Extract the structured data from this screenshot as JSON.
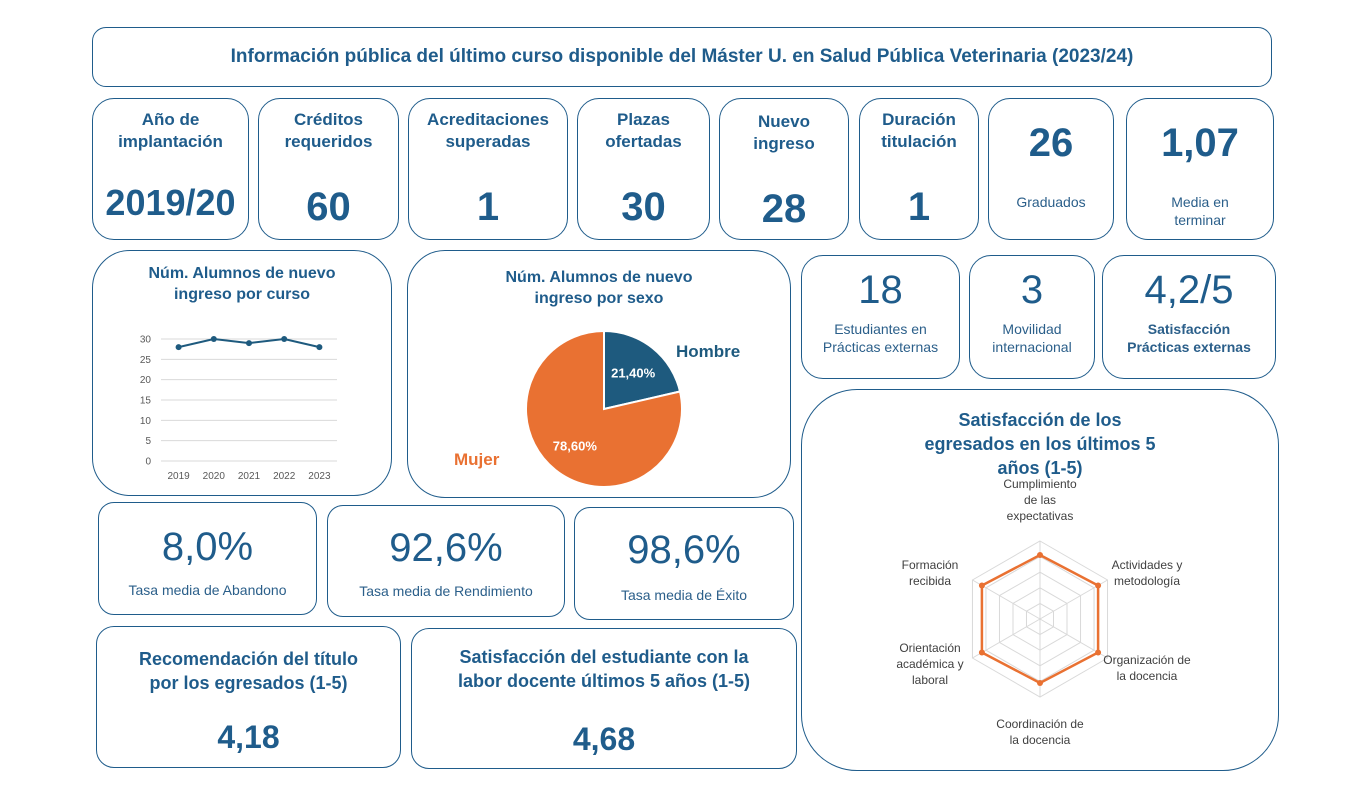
{
  "header": {
    "title": "Información pública del último curso disponible del Máster U. en Salud Pública Veterinaria (2023/24)"
  },
  "kpis": {
    "implantacion": {
      "label": "Año de implantación",
      "value": "2019/20"
    },
    "creditos": {
      "label": "Créditos requeridos",
      "value": "60"
    },
    "acreditaciones": {
      "label": "Acreditaciones superadas",
      "value": "1"
    },
    "plazas": {
      "label": "Plazas ofertadas",
      "value": "30"
    },
    "nuevo_ingreso": {
      "label": "Nuevo ingreso",
      "value": "28"
    },
    "duracion": {
      "label": "Duración titulación",
      "value": "1"
    },
    "graduados": {
      "value": "26",
      "label": "Graduados"
    },
    "media_terminar": {
      "value": "1,07",
      "label": "Media en terminar"
    }
  },
  "practicas": {
    "estudiantes": {
      "value": "18",
      "label": "Estudiantes en Prácticas externas"
    },
    "movilidad": {
      "value": "3",
      "label": "Movilidad internacional"
    },
    "satisfaccion": {
      "value": "4,2/5",
      "label": "Satisfacción Prácticas externas"
    }
  },
  "tasas": {
    "abandono": {
      "value": "8,0%",
      "label": "Tasa media de Abandono"
    },
    "rendimiento": {
      "value": "92,6%",
      "label": "Tasa media de Rendimiento"
    },
    "exito": {
      "value": "98,6%",
      "label": "Tasa media de Éxito"
    }
  },
  "recomendacion": {
    "label": "Recomendación del título por los egresados (1-5)",
    "value": "4,18"
  },
  "satisfaccion_docente": {
    "label": "Satisfacción del estudiante con la labor docente últimos 5 años (1-5)",
    "value": "4,68"
  },
  "colors": {
    "primary": "#1f5c8b",
    "orange": "#e97132",
    "pie_blue": "#1e5a7e"
  },
  "chart_data": [
    {
      "type": "line",
      "title": "Núm. Alumnos de nuevo ingreso por curso",
      "categories": [
        "2019",
        "2020",
        "2021",
        "2022",
        "2023"
      ],
      "values": [
        28,
        30,
        29,
        30,
        28
      ],
      "ylim": [
        0,
        30
      ],
      "yticks": [
        0,
        5,
        10,
        15,
        20,
        25,
        30
      ],
      "grid": true
    },
    {
      "type": "pie",
      "title": "Núm. Alumnos de nuevo ingreso por sexo",
      "labels": [
        "Hombre",
        "Mujer"
      ],
      "values": [
        21.4,
        78.6
      ],
      "value_labels": [
        "21,40%",
        "78,60%"
      ],
      "colors": [
        "#1e5a7e",
        "#e97132"
      ]
    },
    {
      "type": "radar",
      "title": "Satisfacción de los egresados en los últimos 5 años (1-5)",
      "axes": [
        "Cumplimiento de las expectativas",
        "Actividades y metodología",
        "Organización de la docencia",
        "Coordinación de la docencia",
        "Orientación académica y laboral",
        "Formación recibida"
      ],
      "values": [
        4.1,
        4.3,
        4.3,
        4.1,
        4.3,
        4.3
      ],
      "range": [
        0,
        5
      ]
    }
  ]
}
